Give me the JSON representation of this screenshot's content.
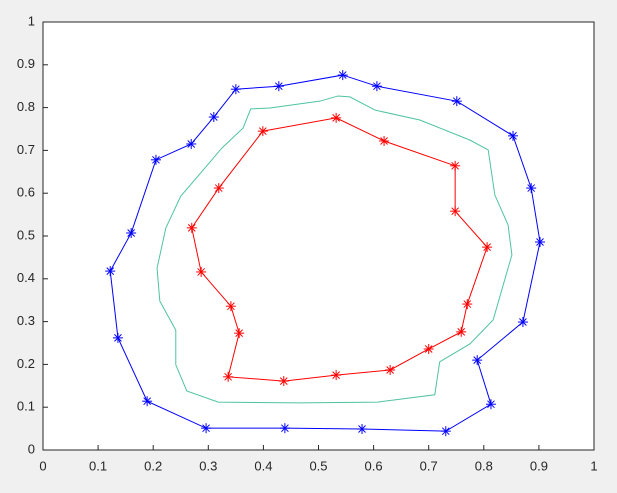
{
  "chart_data": {
    "type": "line",
    "xlim": [
      0,
      1
    ],
    "ylim": [
      0,
      1
    ],
    "xticks": [
      0,
      0.1,
      0.2,
      0.3,
      0.4,
      0.5,
      0.6,
      0.7,
      0.8,
      0.9,
      1
    ],
    "yticks": [
      0,
      0.1,
      0.2,
      0.3,
      0.4,
      0.5,
      0.6,
      0.7,
      0.8,
      0.9,
      1
    ],
    "grid": false,
    "series": [
      {
        "color": "#0000ff",
        "marker": "*",
        "closed": true,
        "x": [
          0.544,
          0.606,
          0.751,
          0.853,
          0.886,
          0.902,
          0.871,
          0.788,
          0.813,
          0.731,
          0.579,
          0.439,
          0.296,
          0.189,
          0.136,
          0.122,
          0.16,
          0.205,
          0.269,
          0.31,
          0.35,
          0.428
        ],
        "values": [
          0.876,
          0.85,
          0.815,
          0.734,
          0.612,
          0.486,
          0.299,
          0.21,
          0.107,
          0.044,
          0.049,
          0.051,
          0.051,
          0.114,
          0.262,
          0.418,
          0.507,
          0.678,
          0.715,
          0.778,
          0.843,
          0.85
        ]
      },
      {
        "color": "#ff0000",
        "marker": "*",
        "closed": true,
        "x": [
          0.532,
          0.619,
          0.748,
          0.748,
          0.806,
          0.77,
          0.759,
          0.7,
          0.63,
          0.532,
          0.437,
          0.336,
          0.356,
          0.341,
          0.287,
          0.27,
          0.319,
          0.399
        ],
        "values": [
          0.776,
          0.722,
          0.664,
          0.558,
          0.474,
          0.341,
          0.276,
          0.236,
          0.187,
          0.175,
          0.161,
          0.171,
          0.273,
          0.336,
          0.416,
          0.519,
          0.612,
          0.745
        ]
      },
      {
        "color": "#4fc3a1",
        "marker": "none",
        "closed": true,
        "x": [
          0.535,
          0.502,
          0.412,
          0.377,
          0.363,
          0.325,
          0.294,
          0.25,
          0.223,
          0.207,
          0.212,
          0.241,
          0.241,
          0.261,
          0.318,
          0.466,
          0.608,
          0.711,
          0.72,
          0.775,
          0.817,
          0.851,
          0.844,
          0.82,
          0.808,
          0.775,
          0.684,
          0.603,
          0.557
        ],
        "values": [
          0.827,
          0.815,
          0.799,
          0.797,
          0.752,
          0.706,
          0.659,
          0.593,
          0.519,
          0.425,
          0.348,
          0.28,
          0.199,
          0.138,
          0.112,
          0.11,
          0.112,
          0.129,
          0.206,
          0.248,
          0.304,
          0.456,
          0.526,
          0.596,
          0.701,
          0.724,
          0.771,
          0.794,
          0.825
        ]
      }
    ]
  }
}
